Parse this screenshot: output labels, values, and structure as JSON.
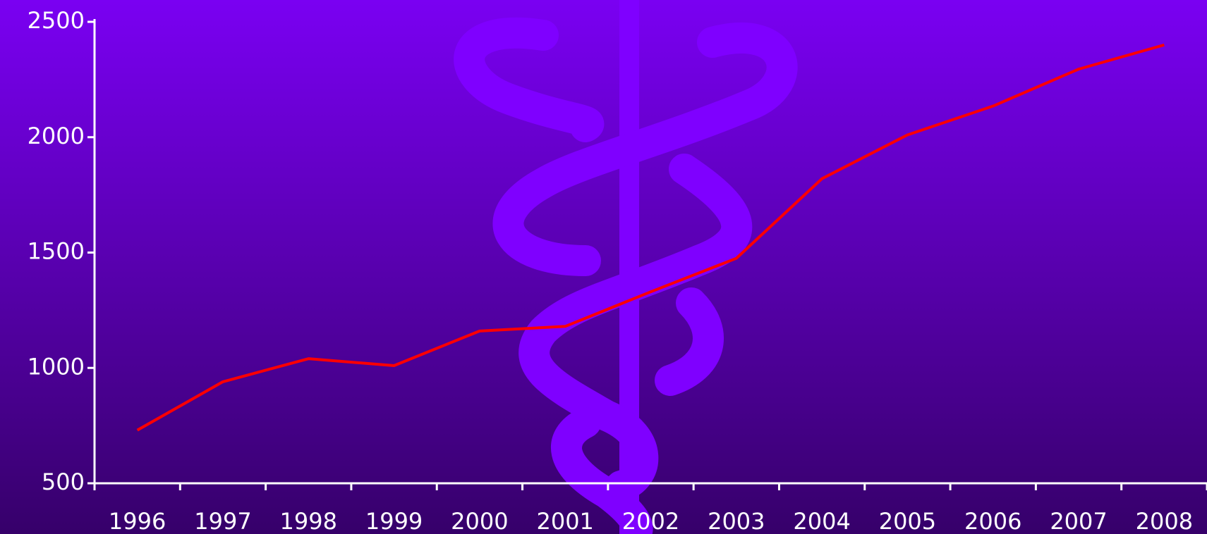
{
  "chart_data": {
    "type": "line",
    "categories": [
      "1996",
      "1997",
      "1998",
      "1999",
      "2000",
      "2001",
      "2002",
      "2003",
      "2004",
      "2005",
      "2006",
      "2007",
      "2008"
    ],
    "series": [
      {
        "name": null,
        "color": "#ff0000",
        "values": [
          730,
          940,
          1040,
          1010,
          1160,
          1180,
          1330,
          1475,
          1820,
          2010,
          2135,
          2295,
          2400
        ]
      }
    ],
    "ylim": [
      500,
      2500
    ],
    "yticks": [
      500,
      1000,
      1500,
      2000,
      2500
    ]
  }
}
